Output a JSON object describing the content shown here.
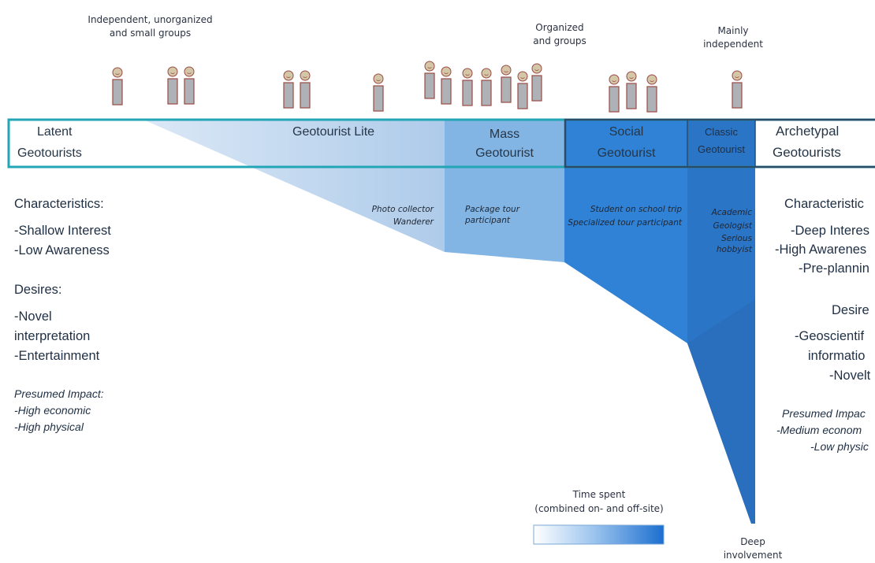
{
  "colors": {
    "frame_teal": "#1fa7b8",
    "frame_dark": "#2b4a63",
    "lite_fill": "#b9d3ec",
    "mass_fill": "#7fb3e3",
    "social_fill": "#2f7fd3",
    "classic_fill": "#2a72bf",
    "person_body": "#aeb1b5",
    "person_outline": "#9a4a44",
    "person_face": "#d4c7a8"
  },
  "top_labels": {
    "independent": "Independent, unorganized\nand small groups",
    "organized": "Organized\nand groups",
    "mainly": "Mainly\nindependent"
  },
  "bar": {
    "latent_1": "Latent",
    "latent_2": "Geotourists",
    "lite": "Geotourist Lite",
    "mass_1": "Mass",
    "mass_2": "Geotourist",
    "social_1": "Social",
    "social_2": "Geotourist",
    "classic_1": "Classic",
    "classic_2": "Geotourist",
    "arch_1": "Archetypal",
    "arch_2": "Geotourists"
  },
  "examples": {
    "photo": "Photo collector",
    "wanderer": "Wanderer",
    "package": "Package tour participant",
    "student": "Student on school trip",
    "specialized": "Specialized tour participant",
    "academic": "Academic",
    "geologist": "Geologist",
    "hobbyist": "Serious hobbyist"
  },
  "left": {
    "char_h": "Characteristics:",
    "c1": "-Shallow Interest",
    "c2": "-Low Awareness",
    "des_h": "Desires:",
    "d1": "-Novel",
    "d2": "interpretation",
    "d3": "-Entertainment",
    "impact_h": "Presumed Impact:",
    "i1": "-High economic",
    "i2": "-High physical"
  },
  "right": {
    "char_h": "Characteristic",
    "c1": "-Deep Interes",
    "c2": "-High Awarenes",
    "c3": "-Pre-plannin",
    "des_h": "Desire",
    "d1": "-Geoscientif",
    "d2": "informatio",
    "d3": "-Novelt",
    "impact_h": "Presumed Impac",
    "i1": "-Medium econom",
    "i2": "-Low physic"
  },
  "legend": {
    "title_1": "Time spent",
    "title_2": "(combined on- and off-site)",
    "deep_1": "Deep",
    "deep_2": "involvement"
  }
}
